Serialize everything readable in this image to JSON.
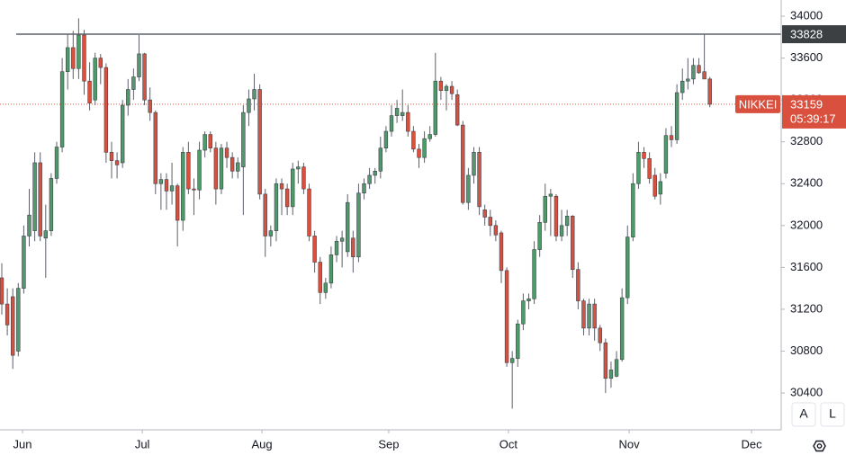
{
  "chart_data": {
    "type": "candlestick",
    "symbol": "NIKKEI",
    "last_price": 33159,
    "countdown": "05:39:17",
    "hline": {
      "value": 33828,
      "label": "33828"
    },
    "ylim": [
      30048,
      34155
    ],
    "yticks": [
      30400,
      30800,
      31200,
      31600,
      32000,
      32400,
      32800,
      33200,
      33600,
      34000
    ],
    "xlim": [
      -0.33,
      142
    ],
    "xticks": [
      {
        "value": 3.77,
        "label": "Jun"
      },
      {
        "value": 25.6,
        "label": "Jul"
      },
      {
        "value": 47.4,
        "label": "Aug"
      },
      {
        "value": 70.5,
        "label": "Sep"
      },
      {
        "value": 92.3,
        "label": "Oct"
      },
      {
        "value": 114.3,
        "label": "Nov"
      },
      {
        "value": 136.6,
        "label": "Dec"
      }
    ],
    "up_color": "#4f9a6b",
    "down_color": "#d9513e",
    "grid": false,
    "buttons": [
      "A",
      "L"
    ],
    "candles": [
      {
        "open": 31500,
        "high": 31640,
        "low": 31150,
        "close": 31250
      },
      {
        "open": 31250,
        "high": 31400,
        "low": 30950,
        "close": 31050
      },
      {
        "open": 31320,
        "high": 31400,
        "low": 30630,
        "close": 30760
      },
      {
        "open": 30800,
        "high": 31450,
        "low": 30750,
        "close": 31400
      },
      {
        "open": 31400,
        "high": 32000,
        "low": 31350,
        "close": 31900
      },
      {
        "open": 31900,
        "high": 32350,
        "low": 31800,
        "close": 32100
      },
      {
        "open": 31950,
        "high": 32700,
        "low": 31850,
        "close": 32600
      },
      {
        "open": 32600,
        "high": 32700,
        "low": 31850,
        "close": 31900
      },
      {
        "open": 31880,
        "high": 32200,
        "low": 31500,
        "close": 31950
      },
      {
        "open": 31950,
        "high": 32500,
        "low": 31900,
        "close": 32450
      },
      {
        "open": 32450,
        "high": 32800,
        "low": 32400,
        "close": 32750
      },
      {
        "open": 32750,
        "high": 33600,
        "low": 32700,
        "close": 33470
      },
      {
        "open": 33470,
        "high": 33830,
        "low": 33300,
        "close": 33700
      },
      {
        "open": 33700,
        "high": 33860,
        "low": 33400,
        "close": 33500
      },
      {
        "open": 33500,
        "high": 33980,
        "low": 33400,
        "close": 33820
      },
      {
        "open": 33820,
        "high": 33870,
        "low": 33250,
        "close": 33380
      },
      {
        "open": 33380,
        "high": 33560,
        "low": 33100,
        "close": 33170
      },
      {
        "open": 33200,
        "high": 33650,
        "low": 33150,
        "close": 33600
      },
      {
        "open": 33600,
        "high": 33640,
        "low": 33350,
        "close": 33510
      },
      {
        "open": 33510,
        "high": 33550,
        "low": 32600,
        "close": 32700
      },
      {
        "open": 32700,
        "high": 32800,
        "low": 32450,
        "close": 32620
      },
      {
        "open": 32620,
        "high": 32700,
        "low": 32450,
        "close": 32580
      },
      {
        "open": 32600,
        "high": 33200,
        "low": 32550,
        "close": 33150
      },
      {
        "open": 33150,
        "high": 33400,
        "low": 33050,
        "close": 33300
      },
      {
        "open": 33300,
        "high": 33500,
        "low": 33200,
        "close": 33420
      },
      {
        "open": 33420,
        "high": 33820,
        "low": 33380,
        "close": 33640
      },
      {
        "open": 33640,
        "high": 33650,
        "low": 33150,
        "close": 33200
      },
      {
        "open": 33200,
        "high": 33320,
        "low": 33000,
        "close": 33080
      },
      {
        "open": 33080,
        "high": 33100,
        "low": 32300,
        "close": 32400
      },
      {
        "open": 32400,
        "high": 32500,
        "low": 32150,
        "close": 32440
      },
      {
        "open": 32440,
        "high": 32500,
        "low": 32150,
        "close": 32330
      },
      {
        "open": 32330,
        "high": 32600,
        "low": 32200,
        "close": 32380
      },
      {
        "open": 32380,
        "high": 32400,
        "low": 31800,
        "close": 32050
      },
      {
        "open": 32050,
        "high": 32750,
        "low": 31950,
        "close": 32700
      },
      {
        "open": 32700,
        "high": 32800,
        "low": 32300,
        "close": 32350
      },
      {
        "open": 32350,
        "high": 32450,
        "low": 32100,
        "close": 32340
      },
      {
        "open": 32340,
        "high": 32800,
        "low": 32250,
        "close": 32720
      },
      {
        "open": 32720,
        "high": 32900,
        "low": 32650,
        "close": 32870
      },
      {
        "open": 32870,
        "high": 32900,
        "low": 32700,
        "close": 32740
      },
      {
        "open": 32740,
        "high": 32800,
        "low": 32200,
        "close": 32350
      },
      {
        "open": 32350,
        "high": 32780,
        "low": 32300,
        "close": 32740
      },
      {
        "open": 32740,
        "high": 32800,
        "low": 32550,
        "close": 32650
      },
      {
        "open": 32650,
        "high": 32700,
        "low": 32450,
        "close": 32520
      },
      {
        "open": 32520,
        "high": 32650,
        "low": 32450,
        "close": 32600
      },
      {
        "open": 32560,
        "high": 33150,
        "low": 32100,
        "close": 33080
      },
      {
        "open": 33080,
        "high": 33300,
        "low": 32950,
        "close": 33210
      },
      {
        "open": 33210,
        "high": 33450,
        "low": 33100,
        "close": 33300
      },
      {
        "open": 33300,
        "high": 33350,
        "low": 32250,
        "close": 32300
      },
      {
        "open": 32300,
        "high": 32350,
        "low": 31700,
        "close": 31900
      },
      {
        "open": 31900,
        "high": 32000,
        "low": 31800,
        "close": 31950
      },
      {
        "open": 31950,
        "high": 32450,
        "low": 31850,
        "close": 32400
      },
      {
        "open": 32400,
        "high": 32450,
        "low": 32100,
        "close": 32350
      },
      {
        "open": 32350,
        "high": 32400,
        "low": 32100,
        "close": 32180
      },
      {
        "open": 32180,
        "high": 32600,
        "low": 32100,
        "close": 32540
      },
      {
        "open": 32540,
        "high": 32620,
        "low": 32400,
        "close": 32560
      },
      {
        "open": 32560,
        "high": 32600,
        "low": 32300,
        "close": 32350
      },
      {
        "open": 32350,
        "high": 32400,
        "low": 31850,
        "close": 31900
      },
      {
        "open": 31900,
        "high": 31950,
        "low": 31550,
        "close": 31650
      },
      {
        "open": 31650,
        "high": 31700,
        "low": 31250,
        "close": 31360
      },
      {
        "open": 31360,
        "high": 31500,
        "low": 31300,
        "close": 31450
      },
      {
        "open": 31450,
        "high": 31800,
        "low": 31400,
        "close": 31720
      },
      {
        "open": 31720,
        "high": 31900,
        "low": 31650,
        "close": 31850
      },
      {
        "open": 31850,
        "high": 31950,
        "low": 31600,
        "close": 31880
      },
      {
        "open": 31750,
        "high": 32300,
        "low": 31700,
        "close": 32220
      },
      {
        "open": 31880,
        "high": 31950,
        "low": 31550,
        "close": 31700
      },
      {
        "open": 31700,
        "high": 32400,
        "low": 31650,
        "close": 32310
      },
      {
        "open": 32310,
        "high": 32450,
        "low": 32250,
        "close": 32400
      },
      {
        "open": 32400,
        "high": 32550,
        "low": 32350,
        "close": 32480
      },
      {
        "open": 32480,
        "high": 32550,
        "low": 32400,
        "close": 32520
      },
      {
        "open": 32520,
        "high": 32850,
        "low": 32450,
        "close": 32740
      },
      {
        "open": 32740,
        "high": 32950,
        "low": 32700,
        "close": 32900
      },
      {
        "open": 32900,
        "high": 33150,
        "low": 32850,
        "close": 33050
      },
      {
        "open": 33050,
        "high": 33200,
        "low": 32980,
        "close": 33120
      },
      {
        "open": 33050,
        "high": 33300,
        "low": 33000,
        "close": 33080
      },
      {
        "open": 33080,
        "high": 33150,
        "low": 32850,
        "close": 32900
      },
      {
        "open": 32900,
        "high": 32950,
        "low": 32700,
        "close": 32730
      },
      {
        "open": 32730,
        "high": 32780,
        "low": 32550,
        "close": 32650
      },
      {
        "open": 32650,
        "high": 32900,
        "low": 32600,
        "close": 32830
      },
      {
        "open": 32830,
        "high": 32950,
        "low": 32800,
        "close": 32870
      },
      {
        "open": 32870,
        "high": 33650,
        "low": 32850,
        "close": 33380
      },
      {
        "open": 33380,
        "high": 33420,
        "low": 33200,
        "close": 33290
      },
      {
        "open": 33290,
        "high": 33350,
        "low": 33100,
        "close": 33330
      },
      {
        "open": 33330,
        "high": 33380,
        "low": 33200,
        "close": 33260
      },
      {
        "open": 33250,
        "high": 33300,
        "low": 32950,
        "close": 32960
      },
      {
        "open": 32960,
        "high": 33000,
        "low": 32200,
        "close": 32220
      },
      {
        "open": 32220,
        "high": 32550,
        "low": 32150,
        "close": 32480
      },
      {
        "open": 32480,
        "high": 32750,
        "low": 32400,
        "close": 32700
      },
      {
        "open": 32700,
        "high": 32750,
        "low": 32100,
        "close": 32180
      },
      {
        "open": 32150,
        "high": 32200,
        "low": 32000,
        "close": 32080
      },
      {
        "open": 32080,
        "high": 32150,
        "low": 31900,
        "close": 32000
      },
      {
        "open": 32000,
        "high": 32050,
        "low": 31850,
        "close": 31910
      },
      {
        "open": 31930,
        "high": 31950,
        "low": 31450,
        "close": 31570
      },
      {
        "open": 31570,
        "high": 31600,
        "low": 30650,
        "close": 30690
      },
      {
        "open": 30690,
        "high": 30800,
        "low": 30250,
        "close": 30730
      },
      {
        "open": 30730,
        "high": 31100,
        "low": 30650,
        "close": 31060
      },
      {
        "open": 31060,
        "high": 31350,
        "low": 31000,
        "close": 31280
      },
      {
        "open": 31280,
        "high": 31350,
        "low": 31200,
        "close": 31300
      },
      {
        "open": 31300,
        "high": 31850,
        "low": 31250,
        "close": 31770
      },
      {
        "open": 31770,
        "high": 32100,
        "low": 31700,
        "close": 32030
      },
      {
        "open": 32030,
        "high": 32400,
        "low": 31950,
        "close": 32280
      },
      {
        "open": 32280,
        "high": 32350,
        "low": 31900,
        "close": 32300
      },
      {
        "open": 32280,
        "high": 32300,
        "low": 31850,
        "close": 31900
      },
      {
        "open": 31900,
        "high": 32150,
        "low": 31850,
        "close": 32000
      },
      {
        "open": 32000,
        "high": 32150,
        "low": 31900,
        "close": 32090
      },
      {
        "open": 32090,
        "high": 32100,
        "low": 31500,
        "close": 31580
      },
      {
        "open": 31580,
        "high": 31650,
        "low": 31200,
        "close": 31280
      },
      {
        "open": 31280,
        "high": 31300,
        "low": 30950,
        "close": 31020
      },
      {
        "open": 31020,
        "high": 31300,
        "low": 30950,
        "close": 31250
      },
      {
        "open": 31250,
        "high": 31300,
        "low": 30900,
        "close": 31020
      },
      {
        "open": 31020,
        "high": 31050,
        "low": 30800,
        "close": 30880
      },
      {
        "open": 30880,
        "high": 30920,
        "low": 30400,
        "close": 30540
      },
      {
        "open": 30540,
        "high": 30700,
        "low": 30450,
        "close": 30620
      },
      {
        "open": 30560,
        "high": 30800,
        "low": 30550,
        "close": 30720
      },
      {
        "open": 30720,
        "high": 31400,
        "low": 30700,
        "close": 31310
      },
      {
        "open": 31310,
        "high": 32000,
        "low": 31250,
        "close": 31890
      },
      {
        "open": 31890,
        "high": 32500,
        "low": 31850,
        "close": 32400
      },
      {
        "open": 32400,
        "high": 32800,
        "low": 32350,
        "close": 32700
      },
      {
        "open": 32700,
        "high": 32750,
        "low": 32550,
        "close": 32640
      },
      {
        "open": 32640,
        "high": 32700,
        "low": 32400,
        "close": 32450
      },
      {
        "open": 32480,
        "high": 32550,
        "low": 32250,
        "close": 32280
      },
      {
        "open": 32300,
        "high": 32500,
        "low": 32200,
        "close": 32420
      },
      {
        "open": 32500,
        "high": 32930,
        "low": 32450,
        "close": 32860
      },
      {
        "open": 32860,
        "high": 32950,
        "low": 32750,
        "close": 32820
      },
      {
        "open": 32820,
        "high": 33350,
        "low": 32780,
        "close": 33270
      },
      {
        "open": 33270,
        "high": 33500,
        "low": 33200,
        "close": 33380
      },
      {
        "open": 33380,
        "high": 33600,
        "low": 33300,
        "close": 33400
      },
      {
        "open": 33400,
        "high": 33600,
        "low": 33350,
        "close": 33530
      },
      {
        "open": 33530,
        "high": 33600,
        "low": 33450,
        "close": 33460
      },
      {
        "open": 33470,
        "high": 33830,
        "low": 33400,
        "close": 33400
      },
      {
        "open": 33400,
        "high": 33420,
        "low": 33130,
        "close": 33159
      }
    ]
  }
}
